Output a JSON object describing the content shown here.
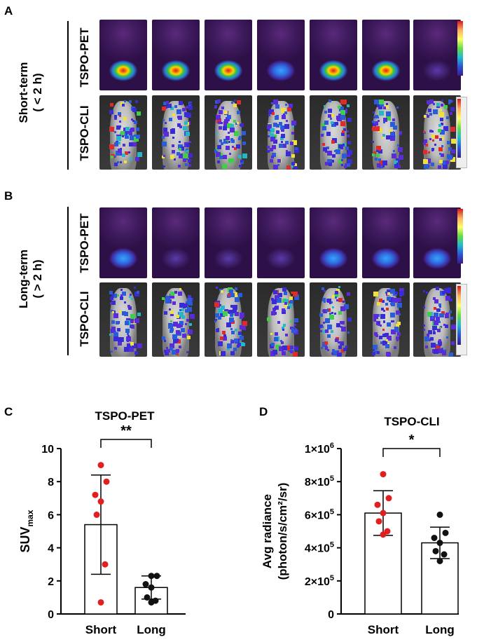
{
  "panels": {
    "A": {
      "letter": "A",
      "group_label_1": "Short-term",
      "group_label_2": "( < 2 h)",
      "row1": "TSPO-PET",
      "row2": "TSPO-CLI"
    },
    "B": {
      "letter": "B",
      "group_label_1": "Long-term",
      "group_label_2": "( > 2 h)",
      "row1": "TSPO-PET",
      "row2": "TSPO-CLI"
    },
    "C": {
      "letter": "C"
    },
    "D": {
      "letter": "D"
    }
  },
  "chart_data": [
    {
      "type": "bar",
      "title": "TSPO-PET",
      "categories": [
        "Short",
        "Long"
      ],
      "values": [
        5.4,
        1.6
      ],
      "error": [
        3.0,
        0.7
      ],
      "points": [
        [
          9.0,
          8.0,
          7.2,
          6.8,
          6.0,
          3.0,
          0.7
        ],
        [
          2.3,
          2.3,
          1.8,
          1.6,
          1.0,
          0.8,
          0.7
        ]
      ],
      "point_colors": [
        "#e02020",
        "#111111"
      ],
      "ylabel": "SUV",
      "ylabel_sub": "max",
      "ylim": [
        0,
        10
      ],
      "yticks": [
        "0",
        "2",
        "4",
        "6",
        "8",
        "10"
      ],
      "significance": "**"
    },
    {
      "type": "bar",
      "title": "TSPO-CLI",
      "categories": [
        "Short",
        "Long"
      ],
      "values": [
        610000,
        430000
      ],
      "error": [
        135000,
        95000
      ],
      "points": [
        [
          845000,
          700000,
          660000,
          610000,
          560000,
          500000,
          480000
        ],
        [
          600000,
          490000,
          460000,
          430000,
          380000,
          360000,
          320000
        ]
      ],
      "point_colors": [
        "#e02020",
        "#111111"
      ],
      "ylabel_line1": "Avg radiance",
      "ylabel_line2": "(photon/s/cm²/sr)",
      "ylim": [
        0,
        1000000
      ],
      "yticks": [
        {
          "base": "0",
          "exp": ""
        },
        {
          "base": "2×10",
          "exp": "5"
        },
        {
          "base": "4×10",
          "exp": "5"
        },
        {
          "base": "6×10",
          "exp": "5"
        },
        {
          "base": "8×10",
          "exp": "5"
        },
        {
          "base": "1×10",
          "exp": "6"
        }
      ],
      "significance": "*"
    }
  ]
}
